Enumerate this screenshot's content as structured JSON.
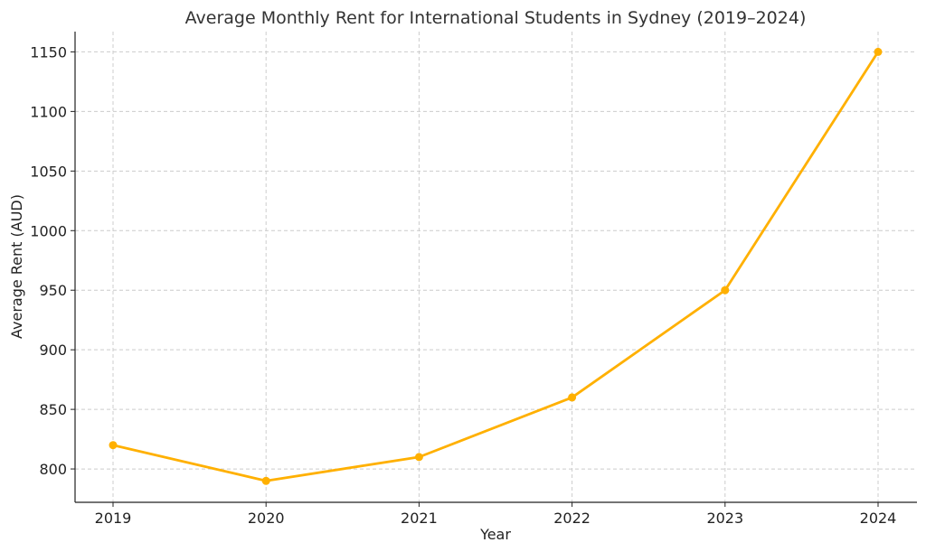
{
  "chart_data": {
    "type": "line",
    "title": "Average Monthly Rent for International Students in Sydney (2019–2024)",
    "xlabel": "Year",
    "ylabel": "Average Rent (AUD)",
    "x": [
      "2019",
      "2020",
      "2021",
      "2022",
      "2023",
      "2024"
    ],
    "series": [
      {
        "values": [
          820,
          790,
          810,
          860,
          950,
          1150
        ],
        "color": "#FFB000"
      }
    ],
    "ylim": [
      772,
      1167
    ],
    "yticks": [
      800,
      850,
      900,
      950,
      1000,
      1050,
      1100,
      1150
    ],
    "grid": true
  }
}
